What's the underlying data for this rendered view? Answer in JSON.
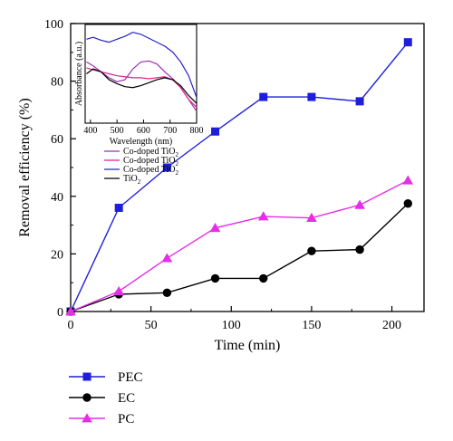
{
  "chart_data": [
    {
      "type": "line",
      "xlabel": "Time (min)",
      "ylabel": "Removal efficiency (%)",
      "xlim": [
        0,
        220
      ],
      "ylim": [
        0,
        100
      ],
      "xticks": [
        "0",
        "50",
        "100",
        "150",
        "200"
      ],
      "yticks": [
        "0",
        "20",
        "40",
        "60",
        "80",
        "100"
      ],
      "legend_position": "bottom-left",
      "series": [
        {
          "name": "PEC",
          "marker": "square",
          "color": "#1f1fdb",
          "x": [
            0,
            30,
            60,
            90,
            120,
            150,
            180,
            210
          ],
          "y": [
            0,
            36,
            50,
            62.5,
            74.5,
            74.5,
            73,
            93.5
          ]
        },
        {
          "name": "EC",
          "marker": "circle",
          "color": "#000000",
          "x": [
            0,
            30,
            60,
            90,
            120,
            150,
            180,
            210
          ],
          "y": [
            0,
            6,
            6.5,
            11.5,
            11.5,
            21,
            21.5,
            37.5
          ]
        },
        {
          "name": "PC",
          "marker": "triangle",
          "color": "#e62ee6",
          "x": [
            0,
            30,
            60,
            90,
            120,
            150,
            180,
            210
          ],
          "y": [
            0,
            7,
            18.5,
            29,
            33,
            32.5,
            37,
            45.5
          ]
        }
      ]
    },
    {
      "type": "line",
      "xlabel": "Wavelength (nm)",
      "ylabel": "Absorbance (a.u.)",
      "xlim": [
        380,
        800
      ],
      "ylim": [
        0,
        1
      ],
      "xticks": [
        "400",
        "500",
        "600",
        "700",
        "800"
      ],
      "legend_position": "below-inset",
      "series": [
        {
          "name_parts": [
            "Co-doped TiO",
            "2"
          ],
          "color": "#9a2fb0",
          "x": [
            385,
            410,
            440,
            470,
            500,
            530,
            560,
            590,
            620,
            650,
            680,
            710,
            740,
            770,
            800
          ],
          "y": [
            0.62,
            0.58,
            0.52,
            0.46,
            0.42,
            0.44,
            0.55,
            0.62,
            0.63,
            0.6,
            0.52,
            0.45,
            0.36,
            0.24,
            0.12
          ]
        },
        {
          "name_parts": [
            "Co-doped TiO",
            "2"
          ],
          "color": "#e0208a",
          "x": [
            385,
            410,
            440,
            470,
            500,
            530,
            560,
            590,
            620,
            650,
            680,
            710,
            740,
            770,
            800
          ],
          "y": [
            0.56,
            0.54,
            0.52,
            0.5,
            0.48,
            0.47,
            0.46,
            0.46,
            0.45,
            0.46,
            0.47,
            0.44,
            0.36,
            0.24,
            0.16
          ]
        },
        {
          "name_parts": [
            "Co-doped TiO",
            "2"
          ],
          "color": "#2424c8",
          "x": [
            385,
            410,
            440,
            470,
            500,
            530,
            560,
            590,
            620,
            650,
            680,
            710,
            740,
            770,
            800
          ],
          "y": [
            0.85,
            0.87,
            0.84,
            0.82,
            0.85,
            0.88,
            0.92,
            0.9,
            0.86,
            0.82,
            0.78,
            0.72,
            0.62,
            0.48,
            0.26
          ]
        },
        {
          "name_parts": [
            "TiO",
            "2"
          ],
          "color": "#000000",
          "x": [
            385,
            410,
            440,
            470,
            500,
            530,
            560,
            590,
            620,
            650,
            680,
            710,
            740,
            770,
            800
          ],
          "y": [
            0.5,
            0.55,
            0.52,
            0.44,
            0.4,
            0.37,
            0.36,
            0.38,
            0.41,
            0.44,
            0.46,
            0.44,
            0.38,
            0.28,
            0.2
          ]
        }
      ]
    }
  ]
}
